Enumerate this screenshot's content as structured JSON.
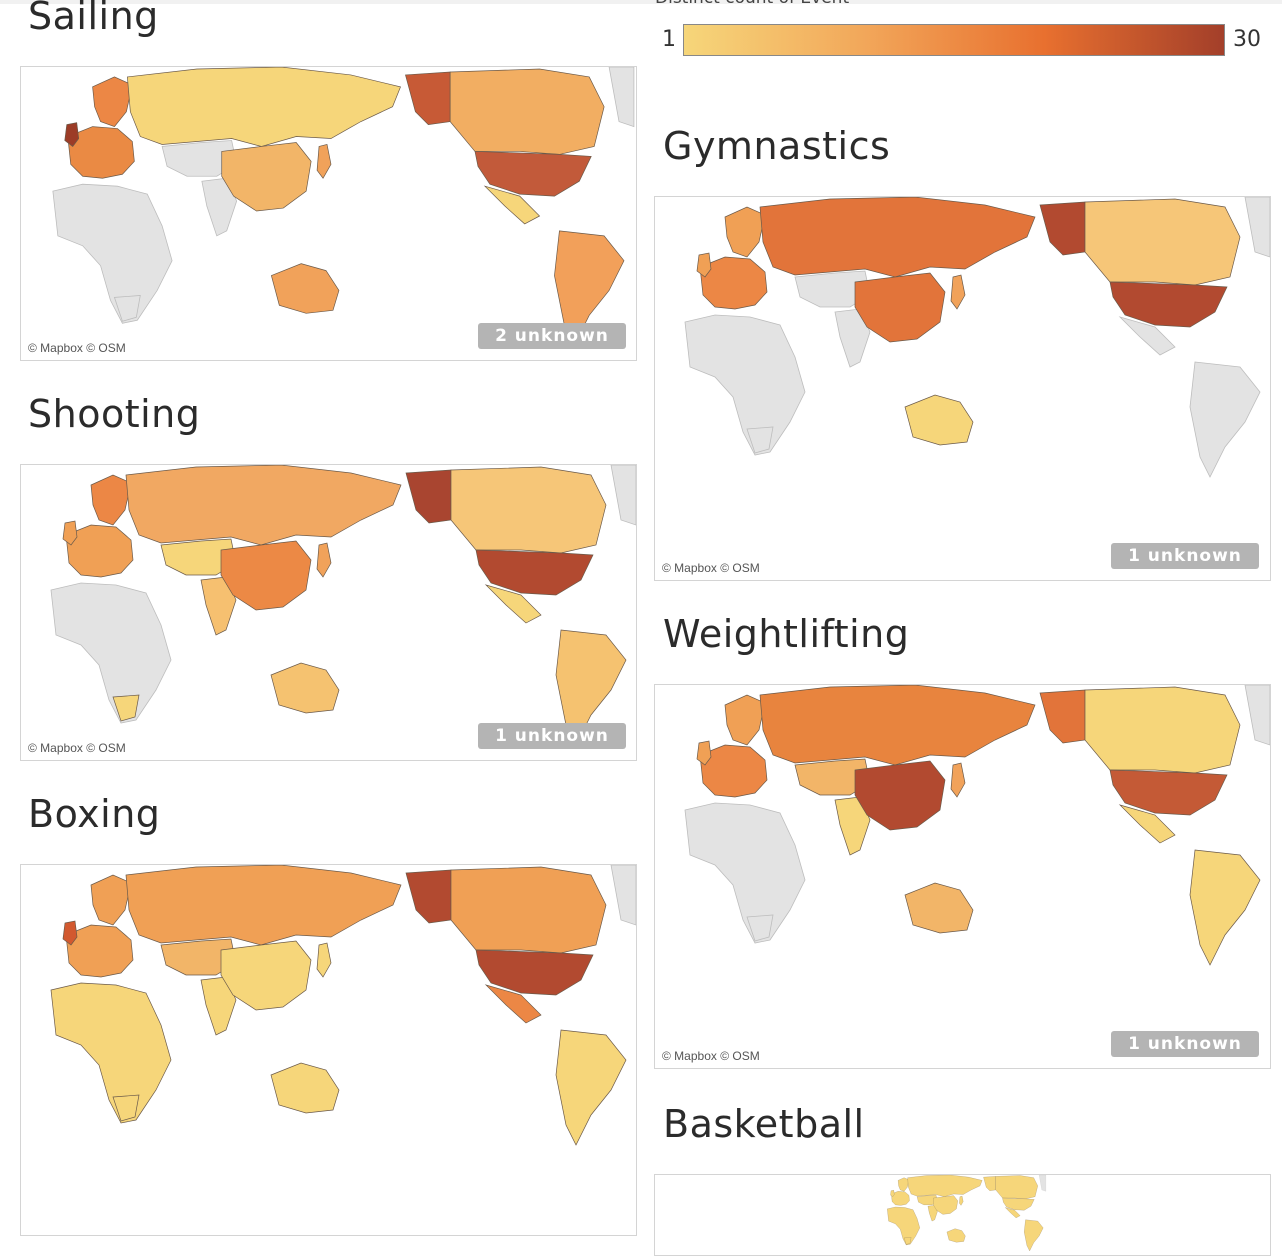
{
  "legend": {
    "title": "Distinct count of Event",
    "min": "1",
    "max": "30",
    "colors": [
      "#f6d67a",
      "#f2a75a",
      "#e8702f",
      "#a33f2a"
    ]
  },
  "attribution": "© Mapbox © OSM",
  "maps": [
    {
      "title": "Sailing",
      "unknown": "2 unknown",
      "fills": {
        "russia": "#f6d67a",
        "canada": "#f2ae62",
        "alaska": "#c75a36",
        "usa": "#c25a3a",
        "china": "#f2b568",
        "europe": "#ea8a44",
        "uk": "#9c3c27",
        "scandinavia": "#ec8745",
        "australia": "#f1a25a",
        "southamerica": "#f2a05a",
        "mexico": "#f6d67a",
        "india": "#e3e3e3",
        "central_asia": "#e3e3e3",
        "africa": "#e3e3e3",
        "japan": "#f1a25a",
        "southafrica": "#e3e3e3"
      }
    },
    {
      "title": "Shooting",
      "unknown": "1 unknown",
      "fills": {
        "russia": "#f1a862",
        "canada": "#f6c678",
        "alaska": "#a94530",
        "usa": "#b24a30",
        "china": "#ec8945",
        "europe": "#f0a055",
        "uk": "#f0a055",
        "scandinavia": "#ec8745",
        "australia": "#f5c270",
        "southamerica": "#f5c270",
        "mexico": "#f6d67a",
        "india": "#f6c070",
        "central_asia": "#f6d67a",
        "africa": "#e3e3e3",
        "japan": "#f1a25a",
        "southafrica": "#f6d67a"
      }
    },
    {
      "title": "Boxing",
      "unknown": "",
      "fills": {
        "russia": "#f0a055",
        "canada": "#f0a055",
        "alaska": "#b24a30",
        "usa": "#b24a30",
        "china": "#f6d67a",
        "europe": "#f0a055",
        "uk": "#d2592f",
        "scandinavia": "#f0a055",
        "australia": "#f6d67a",
        "southamerica": "#f6d67a",
        "mexico": "#ec8745",
        "india": "#f6d67a",
        "central_asia": "#f2b568",
        "africa": "#f6d67a",
        "japan": "#f6d67a",
        "southafrica": "#f6d67a"
      }
    },
    {
      "title": "Gymnastics",
      "unknown": "1 unknown",
      "fills": {
        "russia": "#e2743a",
        "canada": "#f6c678",
        "alaska": "#b24a30",
        "usa": "#b24a30",
        "china": "#e2743a",
        "europe": "#ec8745",
        "uk": "#f0a055",
        "scandinavia": "#f0a055",
        "australia": "#f6d67a",
        "southamerica": "#e3e3e3",
        "mexico": "#e3e3e3",
        "india": "#e3e3e3",
        "central_asia": "#e3e3e3",
        "africa": "#e3e3e3",
        "japan": "#f1a25a",
        "southafrica": "#e3e3e3"
      }
    },
    {
      "title": "Weightlifting",
      "unknown": "1 unknown",
      "fills": {
        "russia": "#e8843e",
        "canada": "#f6d67a",
        "alaska": "#e2743a",
        "usa": "#c45a36",
        "china": "#b24a30",
        "europe": "#ec8745",
        "uk": "#f0a055",
        "scandinavia": "#f0a055",
        "australia": "#f2b568",
        "southamerica": "#f6d67a",
        "mexico": "#f6d67a",
        "india": "#f6d67a",
        "central_asia": "#f2b568",
        "africa": "#e3e3e3",
        "japan": "#f1a25a",
        "southafrica": "#e3e3e3"
      }
    },
    {
      "title": "Basketball",
      "unknown": "",
      "fills": {
        "russia": "#f6d67a",
        "canada": "#f6d67a",
        "alaska": "#f6d67a",
        "usa": "#f6d67a",
        "china": "#f6d67a",
        "europe": "#f6d67a",
        "uk": "#f6d67a",
        "scandinavia": "#f6d67a",
        "australia": "#f6d67a",
        "southamerica": "#f6d67a",
        "mexico": "#f6d67a",
        "india": "#f6d67a",
        "central_asia": "#f6d67a",
        "africa": "#f6d67a",
        "japan": "#f6d67a",
        "southafrica": "#f6d67a"
      }
    }
  ]
}
